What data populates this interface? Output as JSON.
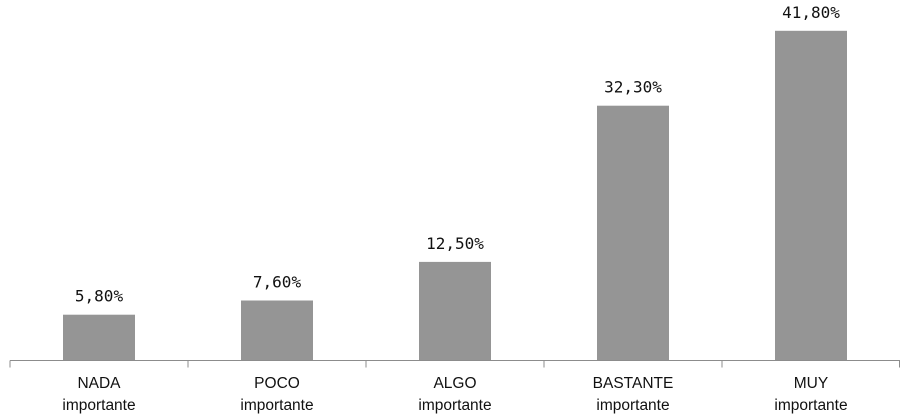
{
  "chart_data": {
    "type": "bar",
    "categories": [
      [
        "NADA",
        "importante"
      ],
      [
        "POCO",
        "importante"
      ],
      [
        "ALGO",
        "importante"
      ],
      [
        "BASTANTE",
        "importante"
      ],
      [
        "MUY",
        "importante"
      ]
    ],
    "values": [
      5.8,
      7.6,
      12.5,
      32.3,
      41.8
    ],
    "data_labels": [
      "5,80%",
      "7,60%",
      "12,50%",
      "32,30%",
      "41,80%"
    ],
    "title": "",
    "xlabel": "",
    "ylabel": "",
    "ylim": [
      0,
      45.7
    ],
    "grid": false,
    "legend": "none",
    "colors": {
      "bar": "#959595",
      "axis": "#8c8c8c",
      "text": "#111111"
    }
  }
}
